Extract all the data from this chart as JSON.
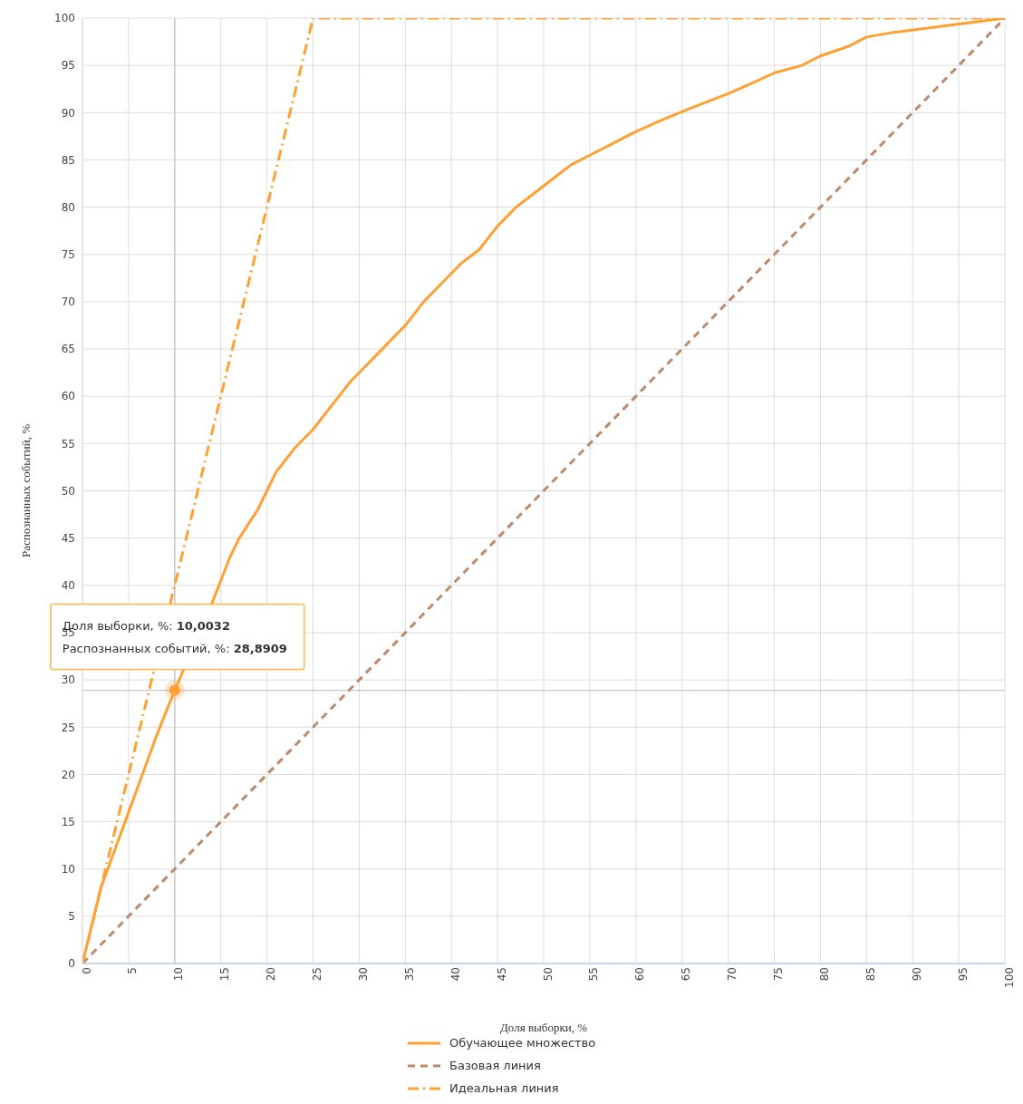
{
  "chart_data": {
    "type": "line",
    "xlabel": "Доля выборки, %",
    "ylabel": "Распознанных событий, %",
    "xlim": [
      0,
      100
    ],
    "ylim": [
      0,
      100
    ],
    "xticks": [
      0,
      5,
      10,
      15,
      20,
      25,
      30,
      35,
      40,
      45,
      50,
      55,
      60,
      65,
      70,
      75,
      80,
      85,
      90,
      95,
      100
    ],
    "yticks": [
      0,
      5,
      10,
      15,
      20,
      25,
      30,
      35,
      40,
      45,
      50,
      55,
      60,
      65,
      70,
      75,
      80,
      85,
      90,
      95,
      100
    ],
    "grid": true,
    "legend": "bottom",
    "series": [
      {
        "name": "Обучающее множество",
        "color": "#ffa033",
        "line_style": "solid",
        "x": [
          0,
          2,
          5,
          8,
          10,
          12,
          14,
          16,
          17,
          19,
          20,
          21,
          23,
          25,
          27,
          29,
          31,
          33,
          35,
          37,
          39,
          41,
          43,
          45,
          47,
          49,
          51,
          53,
          55,
          57,
          60,
          63,
          66,
          70,
          73,
          75,
          78,
          80,
          83,
          85,
          88,
          92,
          96,
          100
        ],
        "values": [
          0,
          8,
          16,
          24,
          28.9,
          null,
          38,
          43,
          45,
          48,
          50,
          52,
          54.5,
          56.5,
          59,
          61.5,
          63.5,
          65.5,
          67.5,
          70,
          72,
          74,
          75.5,
          78,
          80,
          81.5,
          83,
          84.5,
          85.5,
          86.5,
          88,
          89.3,
          90.5,
          92,
          93.3,
          94.2,
          95,
          96,
          97,
          98,
          98.5,
          99,
          99.5,
          100
        ]
      },
      {
        "name": "Базовая линия",
        "color": "#c0896a",
        "line_style": "dashed",
        "x": [
          0,
          100
        ],
        "values": [
          0,
          100
        ]
      },
      {
        "name": "Идеальная линия",
        "color": "#ffa033",
        "line_style": "dashdot",
        "x": [
          0,
          25,
          100
        ],
        "values": [
          0,
          100,
          100
        ]
      },
      {
        "type": "scatter",
        "color": "#ffa033",
        "marker": "circle",
        "x": [
          10
        ],
        "values": [
          28.9
        ]
      }
    ],
    "ref_lines": [
      {
        "axis": "x",
        "value": 10.0032,
        "color": "#b8b8b8"
      },
      {
        "axis": "y",
        "value": 28.8909,
        "color": "#b8b8b8"
      }
    ],
    "annotations": [
      "Доля выборки, %: 10,0032",
      "Распознанных событий, %: 28,8909"
    ]
  }
}
